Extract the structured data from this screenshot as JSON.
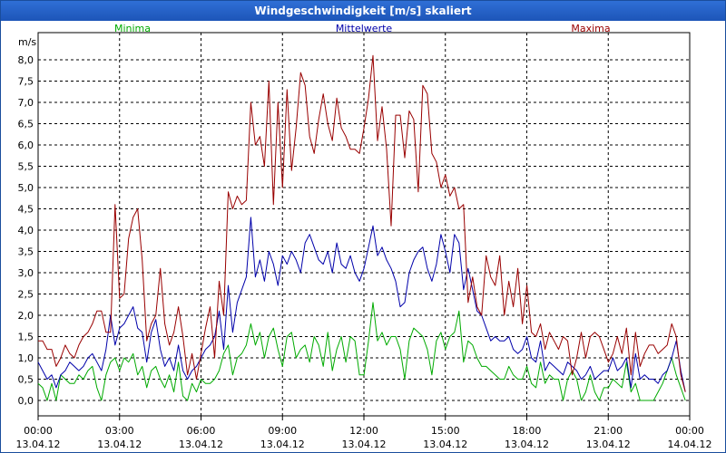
{
  "window": {
    "title": "Windgeschwindigkeit [m/s] skaliert"
  },
  "colors": {
    "minima": "#00aa00",
    "mittelwerte": "#0000aa",
    "maxima": "#990000",
    "grid": "#000000"
  },
  "chart_data": {
    "type": "line",
    "title": "Windgeschwindigkeit [m/s] skaliert",
    "ylabel": "m/s",
    "xlabel": "",
    "ylim": [
      0,
      8.5
    ],
    "xlim": [
      0,
      24
    ],
    "grid": true,
    "legend": [
      "Minima",
      "Mittelwerte",
      "Maxima"
    ],
    "y_ticks": [
      "0,0",
      "0,5",
      "1,0",
      "1,5",
      "2,0",
      "2,5",
      "3,0",
      "3,5",
      "4,0",
      "4,5",
      "5,0",
      "5,5",
      "6,0",
      "6,5",
      "7,0",
      "7,5",
      "8,0"
    ],
    "x_ticks": [
      {
        "time": "00:00",
        "date": "13.04.12"
      },
      {
        "time": "03:00",
        "date": "13.04.12"
      },
      {
        "time": "06:00",
        "date": "13.04.12"
      },
      {
        "time": "09:00",
        "date": "13.04.12"
      },
      {
        "time": "12:00",
        "date": "13.04.12"
      },
      {
        "time": "15:00",
        "date": "13.04.12"
      },
      {
        "time": "18:00",
        "date": "13.04.12"
      },
      {
        "time": "21:00",
        "date": "13.04.12"
      },
      {
        "time": "00:00",
        "date": "14.04.12"
      }
    ],
    "x_step_hours": 0.1667,
    "series": [
      {
        "name": "Minima",
        "color": "#00aa00",
        "values": [
          0.4,
          0.3,
          0.0,
          0.4,
          0.0,
          0.6,
          0.5,
          0.4,
          0.4,
          0.6,
          0.5,
          0.7,
          0.8,
          0.3,
          0.0,
          0.6,
          0.9,
          1.0,
          0.7,
          1.0,
          0.9,
          1.1,
          0.6,
          0.8,
          0.3,
          0.7,
          0.8,
          0.5,
          0.3,
          0.6,
          0.2,
          0.9,
          0.1,
          0.0,
          0.4,
          0.2,
          0.5,
          0.4,
          0.4,
          0.5,
          0.7,
          1.1,
          1.3,
          0.6,
          1.0,
          1.1,
          1.3,
          1.8,
          1.3,
          1.6,
          1.0,
          1.5,
          1.7,
          1.2,
          0.8,
          1.5,
          1.6,
          1.0,
          1.2,
          1.3,
          0.9,
          1.5,
          1.3,
          0.8,
          1.6,
          0.7,
          1.2,
          1.5,
          0.9,
          1.5,
          1.4,
          0.6,
          0.6,
          1.4,
          2.3,
          1.4,
          1.6,
          1.3,
          1.5,
          1.5,
          1.2,
          0.5,
          1.4,
          1.7,
          1.6,
          1.5,
          1.2,
          0.6,
          1.4,
          1.6,
          1.2,
          1.5,
          1.6,
          2.1,
          0.9,
          1.4,
          1.3,
          1.0,
          0.8,
          0.8,
          0.7,
          0.6,
          0.5,
          0.5,
          0.8,
          0.6,
          0.5,
          0.5,
          0.8,
          0.4,
          0.3,
          0.9,
          0.4,
          0.6,
          0.5,
          0.5,
          0.0,
          0.5,
          0.7,
          0.5,
          0.0,
          0.2,
          0.6,
          0.2,
          0.0,
          0.3,
          0.3,
          0.5,
          0.4,
          0.3,
          0.9,
          0.2,
          0.4,
          0.0,
          0.0,
          0.0,
          0.0,
          0.2,
          0.4,
          0.7,
          1.0,
          0.6,
          0.3,
          0.0
        ]
      },
      {
        "name": "Mittelwerte",
        "color": "#0000aa",
        "values": [
          0.9,
          0.7,
          0.5,
          0.6,
          0.3,
          0.6,
          0.7,
          0.9,
          0.8,
          0.7,
          0.8,
          1.0,
          1.1,
          0.9,
          0.7,
          1.2,
          2.0,
          1.3,
          1.7,
          1.8,
          2.0,
          2.2,
          1.7,
          1.6,
          0.9,
          1.6,
          1.9,
          1.2,
          0.8,
          1.0,
          0.7,
          1.3,
          0.7,
          0.5,
          0.7,
          0.8,
          1.0,
          1.2,
          1.3,
          1.5,
          2.1,
          1.2,
          2.7,
          1.6,
          2.3,
          2.6,
          2.9,
          4.3,
          2.9,
          3.3,
          2.8,
          3.5,
          3.2,
          2.7,
          3.4,
          3.2,
          3.5,
          3.3,
          3.0,
          3.7,
          3.9,
          3.6,
          3.3,
          3.2,
          3.5,
          3.0,
          3.7,
          3.2,
          3.1,
          3.4,
          3.0,
          2.8,
          3.1,
          3.6,
          4.1,
          3.4,
          3.6,
          3.3,
          3.1,
          2.8,
          2.2,
          2.3,
          3.0,
          3.3,
          3.5,
          3.6,
          3.1,
          2.8,
          3.2,
          3.9,
          3.5,
          3.0,
          3.9,
          3.7,
          2.6,
          3.1,
          2.6,
          2.1,
          2.0,
          1.7,
          1.4,
          1.5,
          1.4,
          1.4,
          1.5,
          1.2,
          1.1,
          1.2,
          1.5,
          1.0,
          0.9,
          1.4,
          0.7,
          0.9,
          0.8,
          0.7,
          0.6,
          0.9,
          0.8,
          0.7,
          0.5,
          0.6,
          0.8,
          0.5,
          0.6,
          0.7,
          0.7,
          1.0,
          0.7,
          0.8,
          1.0,
          0.3,
          1.1,
          0.5,
          0.6,
          0.5,
          0.5,
          0.4,
          0.6,
          0.7,
          1.0,
          1.4,
          0.7,
          0.2
        ]
      },
      {
        "name": "Maxima",
        "color": "#990000",
        "values": [
          1.4,
          1.4,
          1.2,
          1.2,
          0.8,
          1.0,
          1.3,
          1.1,
          1.0,
          1.3,
          1.5,
          1.6,
          1.8,
          2.1,
          2.1,
          1.6,
          1.6,
          4.6,
          2.4,
          2.5,
          3.8,
          4.3,
          4.5,
          3.3,
          1.4,
          1.8,
          2.0,
          3.1,
          1.8,
          1.3,
          1.6,
          2.2,
          1.5,
          0.6,
          1.1,
          0.5,
          1.1,
          1.7,
          2.2,
          1.0,
          2.8,
          2.0,
          4.9,
          4.5,
          4.8,
          4.6,
          4.7,
          7.0,
          6.0,
          6.2,
          5.5,
          7.5,
          4.6,
          7.0,
          5.0,
          7.3,
          5.4,
          6.4,
          7.7,
          7.4,
          6.2,
          5.8,
          6.6,
          7.2,
          6.5,
          6.1,
          7.1,
          6.4,
          6.2,
          5.9,
          5.9,
          5.8,
          6.4,
          7.1,
          8.1,
          6.1,
          6.9,
          5.9,
          4.1,
          6.7,
          6.7,
          5.7,
          6.8,
          6.6,
          4.9,
          7.4,
          7.2,
          5.8,
          5.6,
          5.0,
          5.3,
          4.8,
          5.0,
          4.5,
          4.6,
          2.3,
          2.9,
          2.2,
          2.0,
          3.4,
          2.9,
          2.7,
          3.4,
          2.0,
          2.8,
          2.2,
          3.1,
          1.8,
          2.7,
          1.6,
          1.5,
          1.8,
          1.2,
          1.6,
          1.4,
          1.2,
          1.5,
          1.4,
          0.6,
          1.0,
          1.6,
          1.0,
          1.5,
          1.6,
          1.5,
          1.2,
          0.9,
          1.1,
          1.5,
          1.1,
          1.7,
          0.6,
          1.6,
          0.8,
          1.1,
          1.3,
          1.3,
          1.1,
          1.2,
          1.3,
          1.8,
          1.5,
          0.6,
          0.2
        ]
      }
    ]
  }
}
